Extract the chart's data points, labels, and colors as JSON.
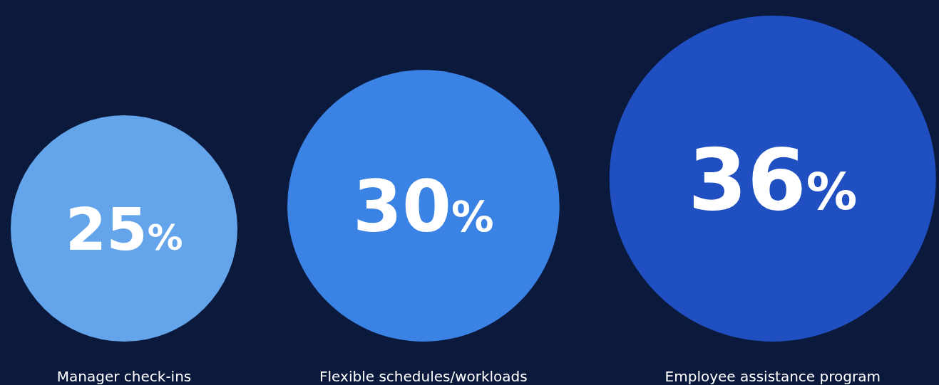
{
  "chart_data": {
    "type": "other",
    "categories": [
      "Manager check-ins",
      "Flexible schedules/workloads",
      "Employee assistance program"
    ],
    "values": [
      25,
      30,
      36
    ],
    "colors": [
      "#63a4ea",
      "#3a82e4",
      "#1f4fc0"
    ],
    "value_labels": [
      "25%",
      "30%",
      "36%"
    ]
  }
}
